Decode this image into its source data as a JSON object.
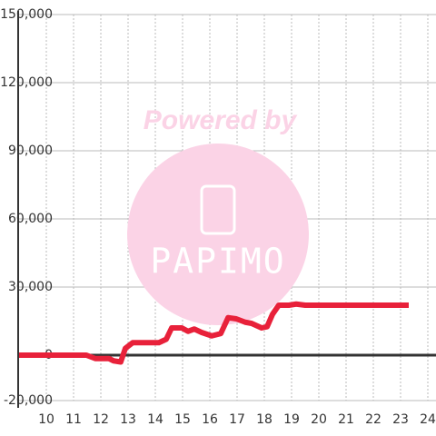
{
  "chart_data": {
    "type": "line",
    "annotations": [
      "Powered by",
      "PAPIMO"
    ],
    "x": [
      9.0,
      11.47,
      11.8,
      12.3,
      12.47,
      12.73,
      12.9,
      13.17,
      14.13,
      14.4,
      14.6,
      14.97,
      15.2,
      15.43,
      15.7,
      16.07,
      16.4,
      16.67,
      16.97,
      17.3,
      17.53,
      17.9,
      18.1,
      18.3,
      18.53,
      18.9,
      19.17,
      19.5,
      23.3
    ],
    "series": [
      {
        "color": "#e8213a",
        "values": [
          0,
          0,
          -1500,
          -1500,
          -2500,
          -3000,
          3000,
          5500,
          5500,
          7000,
          12000,
          12000,
          10500,
          11500,
          10000,
          8500,
          9500,
          16500,
          16000,
          14500,
          14000,
          12000,
          12500,
          18000,
          22000,
          22000,
          22500,
          22000,
          22000
        ]
      }
    ],
    "xlim": [
      9,
      24.3
    ],
    "ylim": [
      -20000,
      150000
    ],
    "xticks": [
      10,
      11,
      12,
      13,
      14,
      15,
      16,
      17,
      18,
      19,
      20,
      21,
      22,
      23,
      24
    ],
    "yticks": [
      {
        "value": -20000,
        "label": "-20,000"
      },
      0,
      {
        "value": 30000,
        "label": "30,000"
      },
      {
        "value": 60000,
        "label": "60,000"
      },
      {
        "value": 90000,
        "label": "90,000"
      },
      {
        "value": 120000,
        "label": "120,000"
      },
      {
        "value": 150000,
        "label": "150,000"
      }
    ],
    "grid": true
  }
}
